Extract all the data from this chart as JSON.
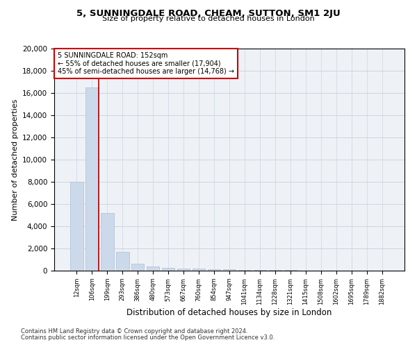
{
  "title1": "5, SUNNINGDALE ROAD, CHEAM, SUTTON, SM1 2JU",
  "title2": "Size of property relative to detached houses in London",
  "xlabel": "Distribution of detached houses by size in London",
  "ylabel": "Number of detached properties",
  "bar_color": "#ccd9ea",
  "bar_edge_color": "#aabdd4",
  "grid_color": "#ccd5e0",
  "background_color": "#eef2f7",
  "vline_color": "#aa0000",
  "annotation_box_color": "#cc0000",
  "annotation_line1": "5 SUNNINGDALE ROAD: 152sqm",
  "annotation_line2": "← 55% of detached houses are smaller (17,904)",
  "annotation_line3": "45% of semi-detached houses are larger (14,768) →",
  "categories": [
    "12sqm",
    "106sqm",
    "199sqm",
    "293sqm",
    "386sqm",
    "480sqm",
    "573sqm",
    "667sqm",
    "760sqm",
    "854sqm",
    "947sqm",
    "1041sqm",
    "1134sqm",
    "1228sqm",
    "1321sqm",
    "1415sqm",
    "1508sqm",
    "1602sqm",
    "1695sqm",
    "1789sqm",
    "1882sqm"
  ],
  "values": [
    8000,
    16500,
    5200,
    1700,
    620,
    350,
    240,
    190,
    175,
    155,
    95,
    75,
    55,
    45,
    35,
    30,
    25,
    20,
    18,
    13,
    8
  ],
  "ylim": [
    0,
    20000
  ],
  "yticks": [
    0,
    2000,
    4000,
    6000,
    8000,
    10000,
    12000,
    14000,
    16000,
    18000,
    20000
  ],
  "footnote1": "Contains HM Land Registry data © Crown copyright and database right 2024.",
  "footnote2": "Contains public sector information licensed under the Open Government Licence v3.0."
}
